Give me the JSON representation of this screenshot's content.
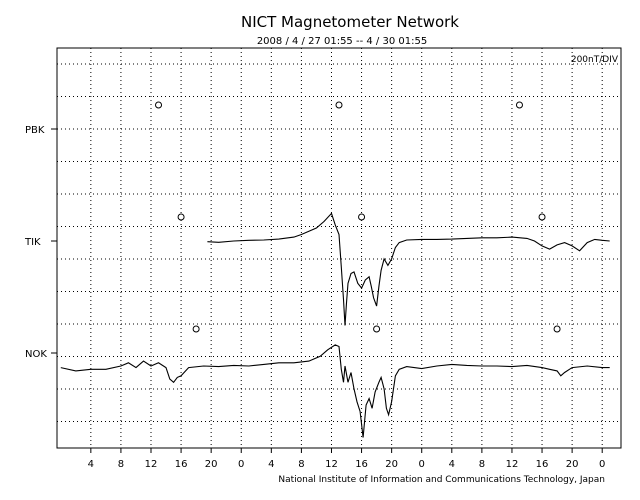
{
  "chart_data": {
    "type": "line",
    "title": "NICT Magnetometer Network",
    "subtitle": "2008 / 4 / 27  01:55 --  4 / 30  01:55",
    "scale_label": "200nT/DIV",
    "footer": "National Institute of Information and Communications Technology, Japan",
    "x_tick_labels": [
      "4",
      "8",
      "12",
      "16",
      "20",
      "0",
      "4",
      "8",
      "12",
      "16",
      "20",
      "0",
      "4",
      "8",
      "12",
      "16",
      "20",
      "0"
    ],
    "x_tick_hours": [
      4,
      8,
      12,
      16,
      20,
      24,
      28,
      32,
      36,
      40,
      44,
      48,
      52,
      56,
      60,
      64,
      68,
      72
    ],
    "xlim_hours": [
      -0.5,
      74.5
    ],
    "grid": "dotted",
    "series": [
      {
        "name": "PBK",
        "noon_marker_hours": [
          13,
          37,
          61
        ],
        "points": []
      },
      {
        "name": "TIK",
        "noon_marker_hours": [
          16,
          40,
          64
        ],
        "points": [
          [
            19.5,
            -0.02
          ],
          [
            21,
            -0.04
          ],
          [
            23,
            0.0
          ],
          [
            25,
            0.02
          ],
          [
            27,
            0.03
          ],
          [
            29,
            0.06
          ],
          [
            31,
            0.12
          ],
          [
            32,
            0.2
          ],
          [
            33,
            0.3
          ],
          [
            34,
            0.4
          ],
          [
            35,
            0.6
          ],
          [
            36,
            0.85
          ],
          [
            36.5,
            0.5
          ],
          [
            37,
            0.2
          ],
          [
            37.3,
            -0.8
          ],
          [
            37.6,
            -1.8
          ],
          [
            37.8,
            -2.6
          ],
          [
            38,
            -1.9
          ],
          [
            38.2,
            -1.3
          ],
          [
            38.6,
            -1.0
          ],
          [
            39,
            -0.95
          ],
          [
            39.5,
            -1.3
          ],
          [
            40,
            -1.45
          ],
          [
            40.5,
            -1.2
          ],
          [
            41,
            -1.1
          ],
          [
            41.3,
            -1.4
          ],
          [
            41.6,
            -1.75
          ],
          [
            42,
            -2.0
          ],
          [
            42.3,
            -1.4
          ],
          [
            42.6,
            -0.9
          ],
          [
            43,
            -0.55
          ],
          [
            43.5,
            -0.75
          ],
          [
            44,
            -0.55
          ],
          [
            44.5,
            -0.2
          ],
          [
            45,
            -0.05
          ],
          [
            46,
            0.03
          ],
          [
            48,
            0.05
          ],
          [
            50,
            0.05
          ],
          [
            52,
            0.06
          ],
          [
            54,
            0.08
          ],
          [
            56,
            0.1
          ],
          [
            58,
            0.1
          ],
          [
            60,
            0.12
          ],
          [
            62,
            0.08
          ],
          [
            63,
            0.0
          ],
          [
            64,
            -0.15
          ],
          [
            65,
            -0.25
          ],
          [
            66,
            -0.12
          ],
          [
            67,
            -0.05
          ],
          [
            68,
            -0.15
          ],
          [
            69,
            -0.3
          ],
          [
            70,
            -0.05
          ],
          [
            71,
            0.05
          ],
          [
            72,
            0.02
          ],
          [
            73,
            0.0
          ]
        ]
      },
      {
        "name": "NOK",
        "noon_marker_hours": [
          18,
          42,
          66
        ],
        "points": [
          [
            0,
            -0.45
          ],
          [
            2,
            -0.55
          ],
          [
            4,
            -0.5
          ],
          [
            6,
            -0.5
          ],
          [
            8,
            -0.4
          ],
          [
            9,
            -0.3
          ],
          [
            10,
            -0.45
          ],
          [
            11,
            -0.25
          ],
          [
            12,
            -0.4
          ],
          [
            13,
            -0.3
          ],
          [
            14,
            -0.45
          ],
          [
            14.5,
            -0.8
          ],
          [
            15,
            -0.9
          ],
          [
            15.5,
            -0.75
          ],
          [
            16,
            -0.7
          ],
          [
            17,
            -0.45
          ],
          [
            19,
            -0.4
          ],
          [
            21,
            -0.42
          ],
          [
            23,
            -0.38
          ],
          [
            25,
            -0.4
          ],
          [
            27,
            -0.35
          ],
          [
            29,
            -0.3
          ],
          [
            31,
            -0.3
          ],
          [
            33,
            -0.25
          ],
          [
            34.5,
            -0.1
          ],
          [
            35.5,
            0.1
          ],
          [
            36.5,
            0.25
          ],
          [
            37,
            0.2
          ],
          [
            37.3,
            -0.5
          ],
          [
            37.6,
            -0.9
          ],
          [
            37.8,
            -0.4
          ],
          [
            38.2,
            -0.9
          ],
          [
            38.6,
            -0.6
          ],
          [
            39,
            -1.1
          ],
          [
            39.4,
            -1.5
          ],
          [
            39.8,
            -1.8
          ],
          [
            40.2,
            -2.6
          ],
          [
            40.6,
            -1.6
          ],
          [
            41,
            -1.4
          ],
          [
            41.4,
            -1.7
          ],
          [
            41.8,
            -1.2
          ],
          [
            42.3,
            -0.9
          ],
          [
            42.6,
            -0.75
          ],
          [
            43,
            -1.1
          ],
          [
            43.3,
            -1.7
          ],
          [
            43.6,
            -1.9
          ],
          [
            44,
            -1.5
          ],
          [
            44.5,
            -0.7
          ],
          [
            45,
            -0.5
          ],
          [
            46,
            -0.42
          ],
          [
            48,
            -0.48
          ],
          [
            50,
            -0.4
          ],
          [
            52,
            -0.35
          ],
          [
            54,
            -0.38
          ],
          [
            56,
            -0.4
          ],
          [
            58,
            -0.4
          ],
          [
            60,
            -0.42
          ],
          [
            62,
            -0.38
          ],
          [
            64,
            -0.45
          ],
          [
            65,
            -0.5
          ],
          [
            66,
            -0.55
          ],
          [
            66.5,
            -0.7
          ],
          [
            67,
            -0.6
          ],
          [
            68,
            -0.45
          ],
          [
            70,
            -0.4
          ],
          [
            72,
            -0.45
          ],
          [
            73,
            -0.45
          ]
        ]
      }
    ]
  }
}
